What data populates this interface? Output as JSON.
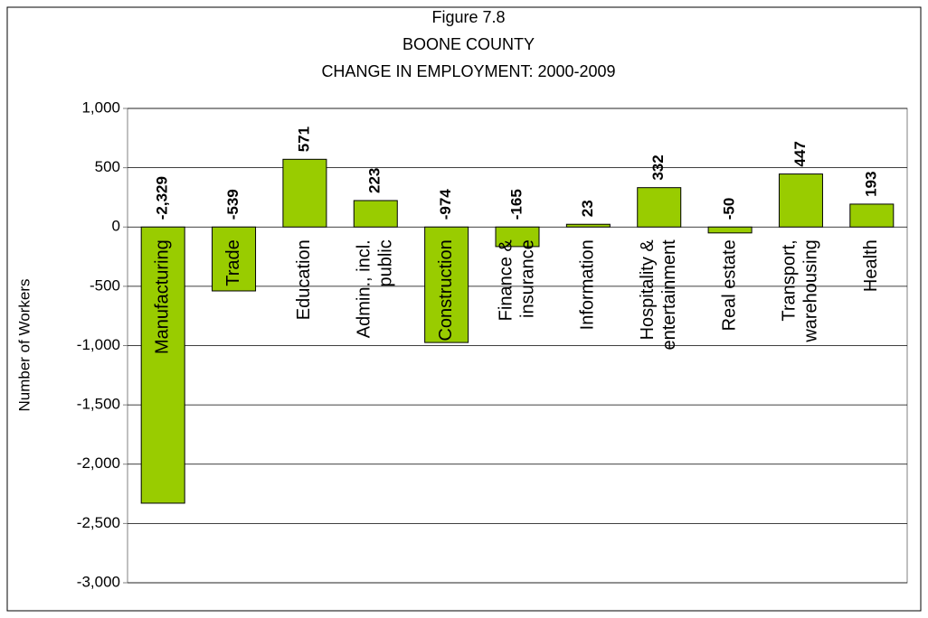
{
  "chart_data": {
    "type": "bar",
    "title_lines": [
      "Figure 7.8",
      "BOONE COUNTY",
      "CHANGE IN EMPLOYMENT:  2000-2009"
    ],
    "y_label": "Number of Workers",
    "categories": [
      [
        "Manufacturing"
      ],
      [
        "Trade"
      ],
      [
        "Education"
      ],
      [
        "Admin., incl.",
        "public"
      ],
      [
        "Construction"
      ],
      [
        "Finance &",
        "insurance"
      ],
      [
        "Information"
      ],
      [
        "Hospitality &",
        "entertainment"
      ],
      [
        "Real estate"
      ],
      [
        "Transport,",
        "warehousing"
      ],
      [
        "Health"
      ]
    ],
    "values": [
      -2329,
      -539,
      571,
      223,
      -974,
      -165,
      23,
      332,
      -50,
      447,
      193
    ],
    "value_labels": [
      "-2,329",
      "-539",
      "571",
      "223",
      "-974",
      "-165",
      "23",
      "332",
      "-50",
      "447",
      "193"
    ],
    "color": "#99cc00",
    "label_color": "#000000",
    "negative_label_color": "#ff0000",
    "ylim": [
      -3000,
      1000
    ],
    "yticks": [
      {
        "value": -3000,
        "label": "-3,000"
      },
      {
        "value": -2500,
        "label": "-2,500"
      },
      {
        "value": -2000,
        "label": "-2,000"
      },
      {
        "value": -1500,
        "label": "-1,500"
      },
      {
        "value": -1000,
        "label": "-1,000"
      },
      {
        "value": -500,
        "label": "-500"
      },
      0,
      500,
      {
        "value": 1000,
        "label": "1,000"
      }
    ],
    "grid": true
  }
}
